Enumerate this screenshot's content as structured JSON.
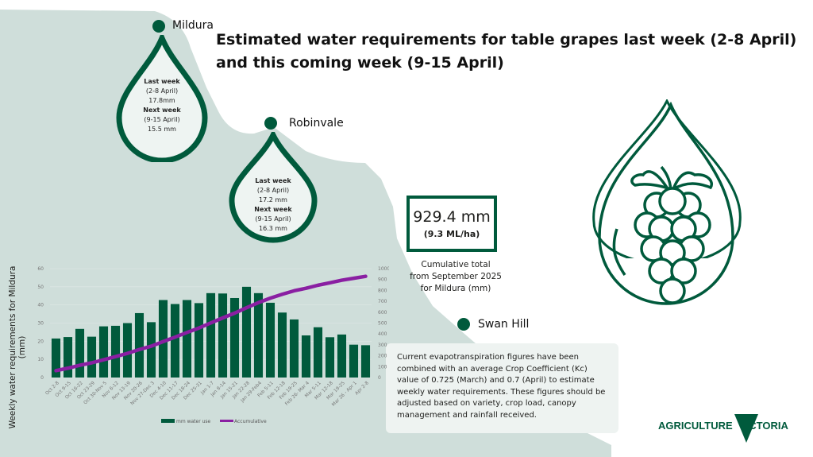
{
  "title": "Estimated water requirements for table grapes last week (2-8 April) and this coming week (9-15 April)",
  "towns": {
    "mildura": {
      "name": "Mildura",
      "last_week_label": "Last week",
      "last_week_dates": "(2-8 April)",
      "last_week_value": "17.8mm",
      "next_week_label": "Next week",
      "next_week_dates": "(9-15 April)",
      "next_week_value": "15.5 mm"
    },
    "robinvale": {
      "name": "Robinvale",
      "last_week_label": "Last week",
      "last_week_dates": "(2-8 April)",
      "last_week_value": "17.2 mm",
      "next_week_label": "Next week",
      "next_week_dates": "(9-15 April)",
      "next_week_value": "16.3 mm"
    },
    "swan_hill": {
      "name": "Swan Hill"
    }
  },
  "total": {
    "mm": "929.4 mm",
    "mlha": "(9.3 ML/ha)",
    "caption_1": "Cumulative total",
    "caption_2": "from September 2025",
    "caption_3": "for Mildura (mm)"
  },
  "note": "Current evapotranspiration figures have been combined with an average Crop Coefficient (Kc) value of 0.725 (March) and 0.7 (April) to estimate weekly water requirements. These figures should be adjusted based on variety, crop load, canopy management and rainfall received.",
  "logo": {
    "text_left": "AGRICULTURE",
    "text_right": "VICTORIA"
  },
  "colors": {
    "green": "#005a3c",
    "purple": "#8a1fa2",
    "map": "#cfdeda"
  },
  "chart_data": {
    "type": "bar+line",
    "ylabel": "Weekly water requirements for Mildura (mm)",
    "ylim": [
      0,
      60
    ],
    "y2lim": [
      0,
      1000
    ],
    "yticks": [
      "0",
      "10",
      "20",
      "30",
      "40",
      "50",
      "60"
    ],
    "y2ticks": [
      "0",
      "100",
      "200",
      "300",
      "400",
      "500",
      "600",
      "700",
      "800",
      "900",
      "1000"
    ],
    "legend_position": "bottom",
    "categories": [
      "Oct 2-8",
      "Oct 9-15",
      "Oct 16-22",
      "Oct 23-29",
      "Oct 30-Nov 5",
      "Nov 6-12",
      "Nov 13-19",
      "Nov 20-26",
      "Nov 27-Dec 3",
      "Dec 4-10",
      "Dec 11-17",
      "Dec 18-24",
      "Dec 25-31",
      "Jan 1-7",
      "Jan 8-14",
      "Jan 15-21",
      "Jan 22-28",
      "Jan 29-Feb4",
      "Feb 5-11",
      "Feb 12-18",
      "Feb 19-25",
      "Feb 26- Mar 4",
      "Mar 5-11",
      "Mar 12-18",
      "Mar 19-25",
      "Mar 26 - Apr 1",
      "Apr 2-8"
    ],
    "series": [
      {
        "name": "mm water use",
        "type": "bar",
        "values": [
          21.5,
          22.3,
          26.8,
          22.5,
          28.2,
          28.5,
          30,
          35.5,
          30.5,
          42.7,
          40.5,
          42.7,
          41,
          46.5,
          46.3,
          43.8,
          50,
          46.5,
          41.2,
          35.8,
          32,
          23.2,
          27.7,
          22.2,
          23.7,
          18.1,
          17.8
        ]
      },
      {
        "name": "Accumulative",
        "type": "line",
        "values": [
          63.4,
          85.7,
          112.5,
          135,
          163.2,
          191.7,
          221.7,
          257.2,
          287.7,
          330.4,
          370.9,
          413.6,
          454.6,
          501.1,
          547.4,
          591.2,
          641.2,
          687.7,
          728.9,
          764.7,
          796.7,
          819.9,
          847.6,
          869.8,
          893.5,
          911.6,
          929.4
        ]
      }
    ]
  }
}
